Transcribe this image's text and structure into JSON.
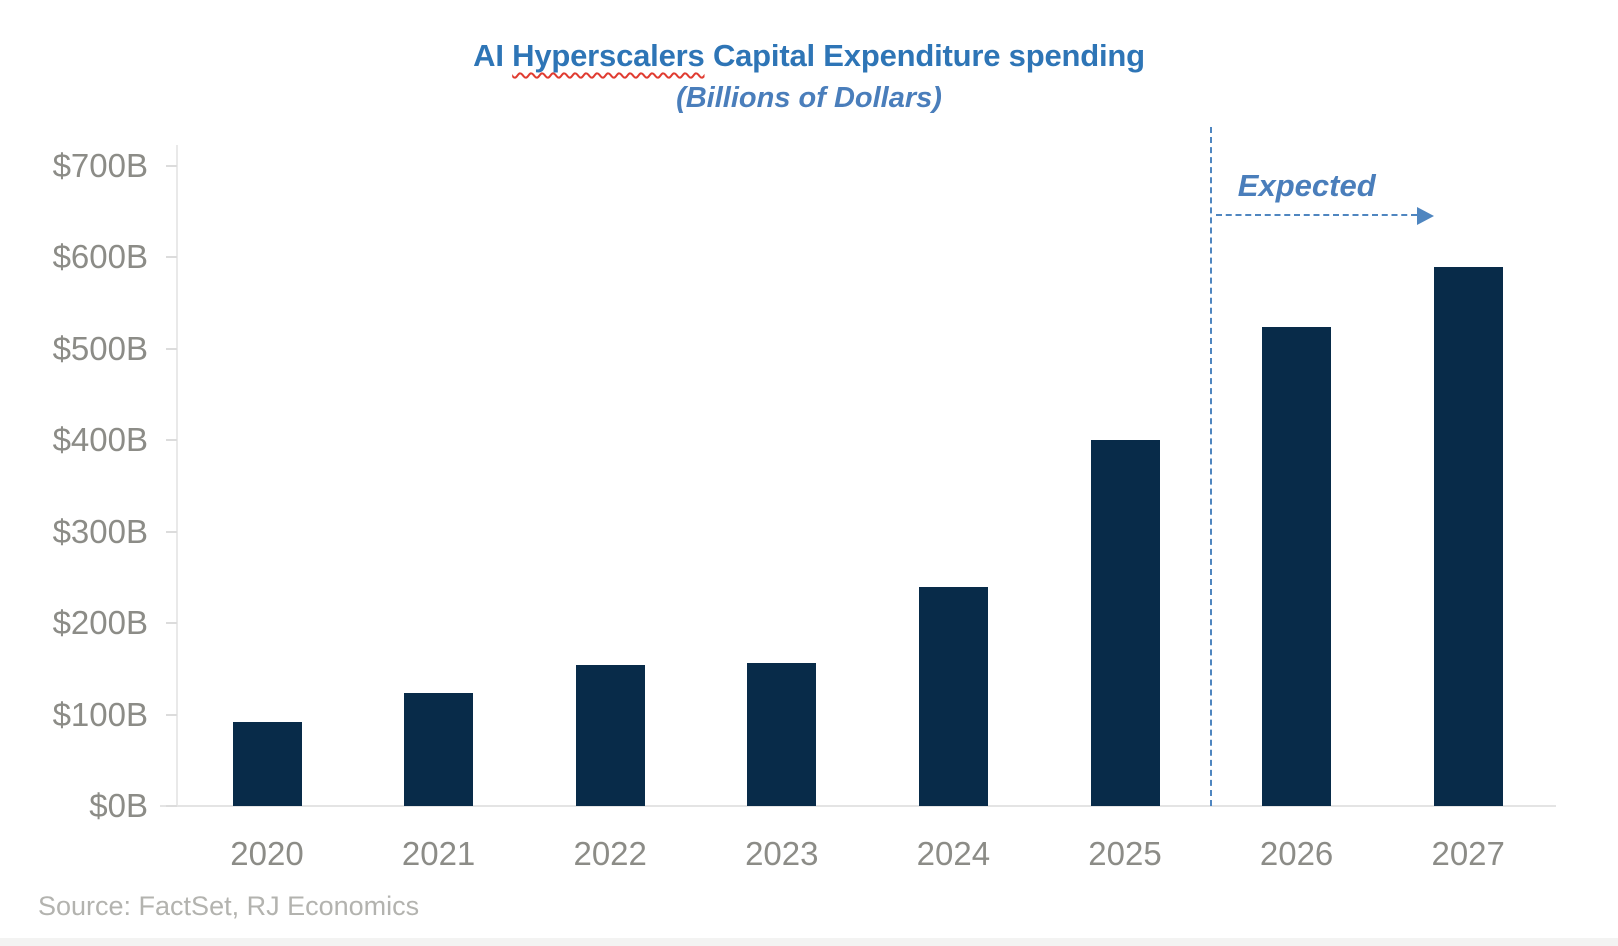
{
  "chart_data": {
    "type": "bar",
    "title": "AI Hyperscalers Capital Expenditure spending",
    "title_parts": {
      "pre": "AI ",
      "misspelled": "Hyperscalers",
      "post": " Capital Expenditure spending"
    },
    "subtitle": "(Billions of Dollars)",
    "categories": [
      "2020",
      "2021",
      "2022",
      "2023",
      "2024",
      "2025",
      "2026",
      "2027"
    ],
    "values": [
      92,
      124,
      154,
      156,
      240,
      400,
      524,
      589
    ],
    "unit": "billions of dollars",
    "ylim": [
      0,
      700
    ],
    "y_tick_step": 100,
    "y_tick_labels": [
      "$0B",
      "$100B",
      "$200B",
      "$300B",
      "$400B",
      "$500B",
      "$600B",
      "$700B"
    ],
    "grid": "off",
    "legend": "none",
    "annotation": {
      "label": "Expected",
      "divider_after_category": "2025",
      "arrow_direction": "right"
    }
  },
  "source": {
    "text": "Source: FactSet, RJ Economics"
  },
  "colors": {
    "bar_navy": "#082b49",
    "title_blue": "#2e75b6",
    "annotation_blue": "#4a7ebb",
    "annotation_line_blue": "#4f86c0",
    "axis_label_gray": "#8c8c87",
    "source_gray": "#b3b3af",
    "squiggle_red": "#e03c31"
  }
}
